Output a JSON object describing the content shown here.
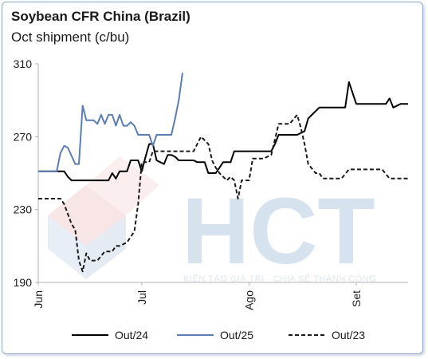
{
  "header": {
    "title": "Soybean CFR China (Brazil)",
    "subtitle": "Oct shipment (c/bu)"
  },
  "watermark": {
    "brand": "HCT",
    "tagline": "KIẾN TẠO GIÁ TRỊ - CHIA SẺ THÀNH CÔNG"
  },
  "chart_data": {
    "type": "line",
    "ylim": [
      190,
      310
    ],
    "yticks": [
      190,
      230,
      270,
      310
    ],
    "xlim": [
      0,
      100
    ],
    "xticks": [
      {
        "label": "Jun",
        "x": 0
      },
      {
        "label": "Jul",
        "x": 28
      },
      {
        "label": "Ago",
        "x": 57
      },
      {
        "label": "Set",
        "x": 86
      }
    ],
    "legend_position": "bottom",
    "grid": false,
    "series": [
      {
        "name": "Out/24",
        "color": "#000000",
        "dash": "solid",
        "x": [
          0,
          7,
          8,
          9,
          12,
          17,
          19,
          20,
          21,
          22,
          23,
          24,
          25,
          27,
          28,
          29,
          30,
          31,
          32,
          33,
          34,
          35,
          36,
          37,
          38,
          40,
          42,
          43,
          45,
          46,
          48,
          50,
          52,
          53,
          55,
          57,
          59,
          61,
          63,
          64,
          65,
          66,
          67,
          68,
          70,
          72,
          73,
          74,
          75,
          76,
          78,
          80,
          82,
          83,
          84,
          86,
          87,
          88,
          90,
          92,
          93,
          94,
          95,
          96,
          98,
          100
        ],
        "values": [
          251,
          251,
          248,
          246,
          246,
          246,
          246,
          250,
          247,
          251,
          251,
          251,
          257,
          257,
          251,
          259,
          266,
          266,
          257,
          256,
          255,
          260,
          260,
          259,
          257,
          257,
          257,
          256,
          256,
          250,
          250,
          256,
          256,
          262,
          262,
          262,
          262,
          262,
          262,
          266,
          271,
          271,
          271,
          271,
          271,
          273,
          280,
          282,
          284,
          286,
          286,
          286,
          286,
          286,
          300,
          288,
          288,
          288,
          288,
          288,
          288,
          288,
          291,
          286,
          288,
          288
        ]
      },
      {
        "name": "Out/25",
        "color": "#5b7db4",
        "dash": "solid",
        "x": [
          0,
          5,
          6,
          7,
          8,
          10,
          11,
          12,
          13,
          14,
          15,
          16,
          17,
          18,
          19,
          20,
          21,
          22,
          23,
          24,
          25,
          26,
          27,
          28,
          29,
          30,
          31,
          32,
          33,
          34,
          35,
          36,
          37,
          38,
          39
        ],
        "values": [
          251,
          251,
          261,
          265,
          264,
          255,
          255,
          287,
          279,
          279,
          279,
          277,
          282,
          277,
          282,
          282,
          276,
          282,
          276,
          276,
          278,
          276,
          271,
          271,
          271,
          271,
          265,
          271,
          271,
          271,
          271,
          271,
          280,
          290,
          305
        ]
      },
      {
        "name": "Out/23",
        "color": "#1a1a1a",
        "dash": "dashed",
        "x": [
          0,
          4,
          6,
          7,
          9,
          10,
          11,
          12,
          13,
          14,
          16,
          18,
          19,
          20,
          21,
          22,
          24,
          26,
          27,
          28,
          30,
          31,
          32,
          34,
          36,
          37,
          38,
          40,
          42,
          44,
          46,
          47,
          48,
          49,
          50,
          51,
          52,
          53,
          54,
          55,
          56,
          57,
          58,
          59,
          61,
          63,
          65,
          66,
          67,
          68,
          70,
          71,
          72,
          73,
          75,
          76,
          77,
          78,
          80,
          82,
          84,
          86,
          88,
          90,
          92,
          93,
          95,
          97,
          99,
          100
        ],
        "values": [
          236,
          236,
          236,
          233,
          222,
          219,
          202,
          196,
          206,
          202,
          202,
          207,
          207,
          207,
          210,
          210,
          212,
          218,
          233,
          256,
          256,
          262,
          262,
          262,
          262,
          262,
          262,
          262,
          262,
          270,
          266,
          257,
          253,
          250,
          248,
          246,
          248,
          246,
          236,
          246,
          246,
          246,
          258,
          258,
          258,
          260,
          277,
          277,
          277,
          277,
          282,
          275,
          266,
          255,
          250,
          250,
          247,
          247,
          247,
          247,
          252,
          252,
          252,
          252,
          252,
          252,
          247,
          247,
          247,
          247
        ]
      }
    ]
  }
}
